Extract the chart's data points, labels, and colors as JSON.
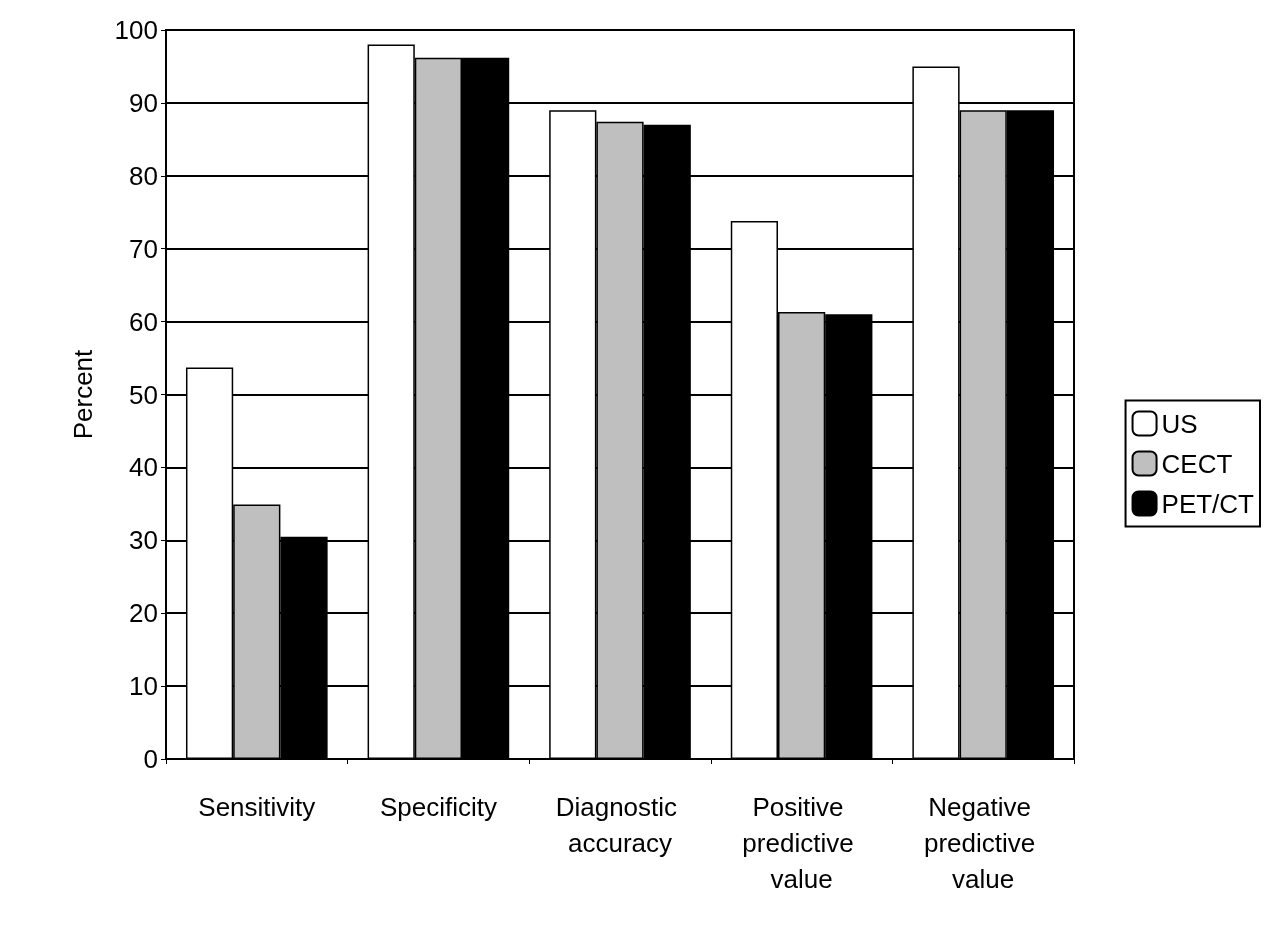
{
  "chart_data": {
    "type": "bar",
    "ylabel": "Percent",
    "categories": [
      "Sensitivity",
      "Specificity",
      "Diagnostic accuracy",
      "Positive predictive value",
      "Negative predictive value"
    ],
    "series": [
      {
        "name": "US",
        "color": "#ffffff",
        "values": [
          53.7,
          98,
          89,
          73.8,
          95
        ]
      },
      {
        "name": "CECT",
        "color": "#bfbfbf",
        "values": [
          34.9,
          96.2,
          87.4,
          61.3,
          89
        ]
      },
      {
        "name": "PET/CT",
        "color": "#000000",
        "values": [
          30.5,
          96.2,
          87,
          61,
          89
        ]
      }
    ],
    "ylim": [
      0,
      100
    ],
    "yticks": [
      0,
      10,
      20,
      30,
      40,
      50,
      60,
      70,
      80,
      90,
      100
    ],
    "grid": "y",
    "legend": "right"
  }
}
